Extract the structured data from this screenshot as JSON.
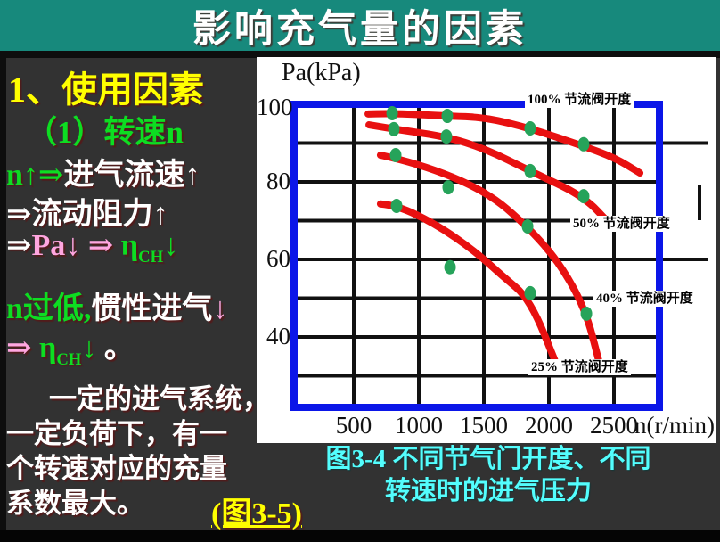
{
  "title": "影响充气量的因素",
  "left": {
    "h1": "1、使用因素",
    "h2": "（1）转速n",
    "l1a": "n↑⇒",
    "l1b": "进气流速↑",
    "l2": "⇒流动阻力↑",
    "l3a": "⇒",
    "l3b": "Pa↓",
    "l3c": " ⇒ ",
    "l3d": "η",
    "l3e": "CH",
    "l3f": "↓",
    "l4a": "n过低,",
    "l4b": "惯性进气",
    "l4c": "↓",
    "l5a": "⇒ ",
    "l5b": "η",
    "l5c": "CH",
    "l5d": "↓",
    "l5e": " 。",
    "para": [
      "一定的进气系统，",
      "一定负荷下，有一",
      "个转速对应的充量",
      "系数最大。"
    ],
    "fig_link": "(图3-5)"
  },
  "caption": {
    "line1": "图3-4  不同节气门开度、不同",
    "line2": "转速时的进气压力"
  },
  "chart_data": {
    "type": "line",
    "xlabel": "n(r/min)",
    "ylabel": "Pa(kPa)",
    "xlim": [
      0,
      2850
    ],
    "ylim": [
      20,
      100
    ],
    "x_ticks": [
      500,
      1000,
      1500,
      2000,
      2500
    ],
    "y_ticks": [
      100,
      80,
      60,
      40
    ],
    "grid": true,
    "legend_position": "on-curve",
    "line_color": "#e81010",
    "dot_color": "#26a35a",
    "frame_color": "#0b16e8",
    "grid_color": "#111111",
    "series": [
      {
        "name": "100% 节流阀开度",
        "points": [
          [
            610,
            97.5
          ],
          [
            795,
            97.7
          ],
          [
            1205,
            97.0
          ],
          [
            1514,
            96.6
          ],
          [
            1856,
            93.8
          ],
          [
            2267,
            89.2
          ],
          [
            2507,
            86.2
          ],
          [
            2699,
            82.3
          ]
        ]
      },
      {
        "name": "50% 节流阀开度",
        "points": [
          [
            617,
            94.7
          ],
          [
            808,
            93.6
          ],
          [
            1205,
            91.7
          ],
          [
            1514,
            88.5
          ],
          [
            1856,
            82.8
          ],
          [
            2267,
            76.3
          ],
          [
            2473,
            69.0
          ]
        ]
      },
      {
        "name": "40% 节流阀开度",
        "points": [
          [
            705,
            86.9
          ],
          [
            1000,
            84.8
          ],
          [
            1514,
            77.7
          ],
          [
            1836,
            68.5
          ],
          [
            2082,
            59.1
          ],
          [
            2281,
            47.1
          ],
          [
            2384,
            33.8
          ]
        ]
      },
      {
        "name": "25% 节流阀开度",
        "points": [
          [
            705,
            74.3
          ],
          [
            828,
            74.0
          ],
          [
            1137,
            69.0
          ],
          [
            1432,
            62.1
          ],
          [
            1637,
            55.9
          ],
          [
            1856,
            49.7
          ],
          [
            2075,
            31.5
          ]
        ]
      }
    ],
    "scatter": [
      [
        795,
        97.7
      ],
      [
        1219,
        97.0
      ],
      [
        1856,
        93.8
      ],
      [
        2267,
        89.7
      ],
      [
        808,
        93.6
      ],
      [
        1212,
        91.7
      ],
      [
        1856,
        82.8
      ],
      [
        2267,
        76.3
      ],
      [
        822,
        86.9
      ],
      [
        1226,
        78.6
      ],
      [
        1836,
        68.5
      ],
      [
        2288,
        46.0
      ],
      [
        829,
        73.8
      ],
      [
        1240,
        58.0
      ],
      [
        1856,
        51.3
      ]
    ]
  }
}
